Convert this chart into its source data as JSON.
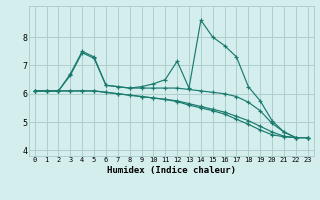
{
  "xlabel": "Humidex (Indice chaleur)",
  "bg_color": "#d4eeed",
  "grid_color": "#aecece",
  "line_color": "#1a7a6e",
  "xlim": [
    -0.5,
    23.5
  ],
  "ylim": [
    3.8,
    9.1
  ],
  "yticks": [
    4,
    5,
    6,
    7,
    8
  ],
  "xticks": [
    0,
    1,
    2,
    3,
    4,
    5,
    6,
    7,
    8,
    9,
    10,
    11,
    12,
    13,
    14,
    15,
    16,
    17,
    18,
    19,
    20,
    21,
    22,
    23
  ],
  "lines": [
    {
      "x": [
        0,
        1,
        2,
        3,
        4,
        5,
        6,
        7,
        8,
        9,
        10,
        11,
        12,
        13,
        14,
        15,
        16,
        17,
        18,
        19,
        20,
        21,
        22,
        23
      ],
      "y": [
        6.1,
        6.1,
        6.1,
        6.7,
        7.5,
        7.3,
        6.3,
        6.25,
        6.2,
        6.25,
        6.35,
        6.5,
        7.15,
        6.2,
        8.6,
        8.0,
        7.7,
        7.3,
        6.25,
        5.75,
        5.05,
        4.65,
        4.45,
        4.45
      ]
    },
    {
      "x": [
        0,
        1,
        2,
        3,
        4,
        5,
        6,
        7,
        8,
        9,
        10,
        11,
        12,
        13,
        14,
        15,
        16,
        17,
        18,
        19,
        20,
        21,
        22,
        23
      ],
      "y": [
        6.1,
        6.1,
        6.1,
        6.65,
        7.45,
        7.25,
        6.3,
        6.25,
        6.2,
        6.2,
        6.2,
        6.2,
        6.2,
        6.15,
        6.1,
        6.05,
        6.0,
        5.9,
        5.7,
        5.4,
        4.95,
        4.65,
        4.45,
        4.45
      ]
    },
    {
      "x": [
        0,
        1,
        2,
        3,
        4,
        5,
        6,
        7,
        8,
        9,
        10,
        11,
        12,
        13,
        14,
        15,
        16,
        17,
        18,
        19,
        20,
        21,
        22,
        23
      ],
      "y": [
        6.1,
        6.1,
        6.1,
        6.1,
        6.1,
        6.1,
        6.05,
        6.0,
        5.95,
        5.9,
        5.85,
        5.8,
        5.75,
        5.65,
        5.55,
        5.45,
        5.35,
        5.2,
        5.05,
        4.85,
        4.65,
        4.5,
        4.45,
        4.45
      ]
    },
    {
      "x": [
        0,
        1,
        2,
        3,
        4,
        5,
        6,
        7,
        8,
        9,
        10,
        11,
        12,
        13,
        14,
        15,
        16,
        17,
        18,
        19,
        20,
        21,
        22,
        23
      ],
      "y": [
        6.1,
        6.1,
        6.1,
        6.1,
        6.1,
        6.1,
        6.05,
        6.0,
        5.95,
        5.9,
        5.85,
        5.8,
        5.72,
        5.6,
        5.5,
        5.4,
        5.28,
        5.1,
        4.92,
        4.72,
        4.55,
        4.48,
        4.45,
        4.45
      ]
    }
  ]
}
